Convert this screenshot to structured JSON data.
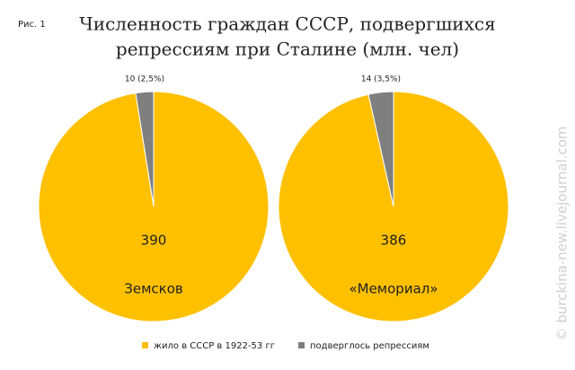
{
  "figure_label": "Рис. 1",
  "title": [
    "Численность граждан СССР, подвергшихся",
    "репрессиям при Сталине (млн. чел)"
  ],
  "legend": [
    "жило в СССР в 1922-53 гг",
    "подверглось репрессиям"
  ],
  "watermark": "© burckina-new.livejournal.com",
  "chart_data": [
    {
      "type": "pie",
      "name": "Земсков",
      "values": [
        390,
        10
      ],
      "value_labels": [
        "390",
        "10 (2,5%)"
      ],
      "colors": [
        "#ffc000",
        "#7f7f7f"
      ]
    },
    {
      "type": "pie",
      "name": "«Мемориал»",
      "values": [
        386,
        14
      ],
      "value_labels": [
        "386",
        "14 (3,5%)"
      ],
      "colors": [
        "#ffc000",
        "#7f7f7f"
      ]
    }
  ]
}
